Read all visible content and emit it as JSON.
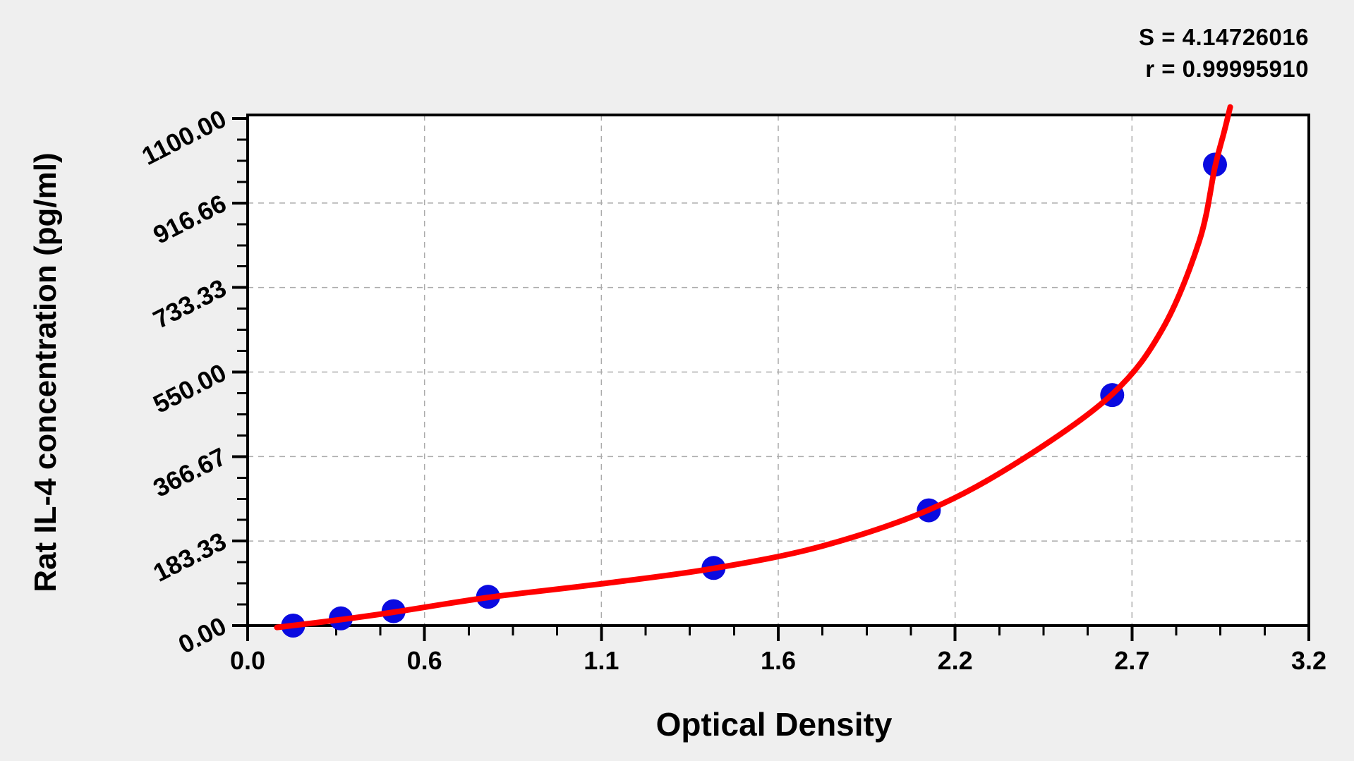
{
  "stats": {
    "s_line": "S = 4.14726016",
    "r_line": "r = 0.99995910"
  },
  "chart_data": {
    "type": "scatter",
    "title": "",
    "xlabel": "Optical Density",
    "ylabel": "Rat IL-4 concentration (pg/ml)",
    "xlim": [
      0,
      3.2
    ],
    "ylim": [
      0,
      1100
    ],
    "x_tick_labels": [
      "0.0",
      "0.6",
      "1.1",
      "1.6",
      "2.2",
      "2.7",
      "3.2"
    ],
    "y_tick_labels": [
      "0.00",
      "183.33",
      "366.67",
      "550.00",
      "733.33",
      "916.66",
      "1100.00"
    ],
    "x_minor_per_major": 4,
    "y_minor_per_major": 4,
    "grid": "dashed-major",
    "legend_position": "none",
    "points": [
      {
        "od": 0.137,
        "conc": 0
      },
      {
        "od": 0.281,
        "conc": 15.63
      },
      {
        "od": 0.44,
        "conc": 31.25
      },
      {
        "od": 0.725,
        "conc": 62.5
      },
      {
        "od": 1.405,
        "conc": 125
      },
      {
        "od": 2.054,
        "conc": 250
      },
      {
        "od": 2.607,
        "conc": 500
      },
      {
        "od": 2.917,
        "conc": 1000
      }
    ],
    "fit_curve_samples": [
      [
        0.088,
        -4
      ],
      [
        0.281,
        13
      ],
      [
        0.44,
        29
      ],
      [
        0.725,
        61
      ],
      [
        1.06,
        90
      ],
      [
        1.405,
        124
      ],
      [
        1.73,
        172
      ],
      [
        2.054,
        251
      ],
      [
        2.33,
        358
      ],
      [
        2.607,
        502
      ],
      [
        2.76,
        645
      ],
      [
        2.87,
        835
      ],
      [
        2.917,
        995
      ],
      [
        2.945,
        1072
      ],
      [
        2.963,
        1125
      ]
    ],
    "colors": {
      "curve": "#ff0000",
      "point": "#0a0ae0",
      "grid": "#ababab",
      "axis": "#000000",
      "background": "#efefef",
      "plot_background": "#ffffff"
    }
  }
}
